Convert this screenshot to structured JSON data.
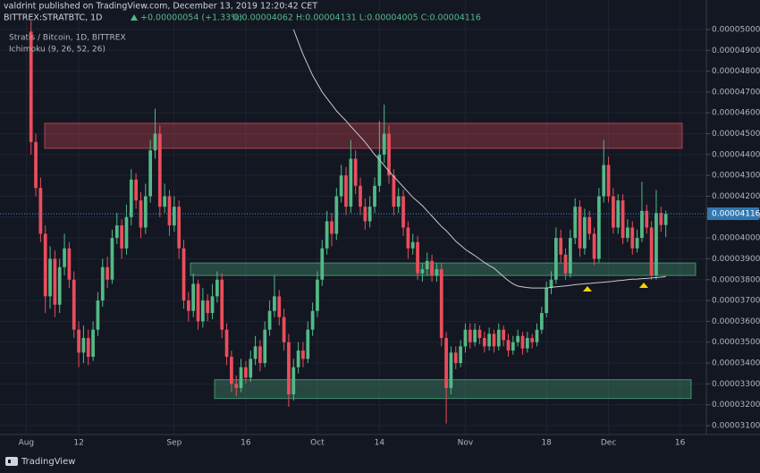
{
  "header": {
    "byline": "valdrint published on TradingView.com, December 13, 2019 12:20:42 CET",
    "symbol": "BITTREX:STRATBTC, 1D",
    "change": "+0.00000054 (+1.33%)",
    "ohlc": "O:0.00004062 H:0.00004131 L:0.00004005 C:0.00004116"
  },
  "footer": {
    "brand": "TradingView"
  },
  "chart_data": {
    "type": "candlestick",
    "legend_title": "Stratis / Bitcoin, 1D, BITTREX",
    "up_color": "#53b987",
    "down_color": "#eb4d5c",
    "grid": true,
    "ylim": [
      3.057e-05,
      5.047e-05
    ],
    "yticks": [
      {
        "value": 3.1e-05,
        "label": "0.00003100"
      },
      {
        "value": 3.2e-05,
        "label": "0.00003200"
      },
      {
        "value": 3.3e-05,
        "label": "0.00003300"
      },
      {
        "value": 3.4e-05,
        "label": "0.00003400"
      },
      {
        "value": 3.5e-05,
        "label": "0.00003500"
      },
      {
        "value": 3.6e-05,
        "label": "0.00003600"
      },
      {
        "value": 3.7e-05,
        "label": "0.00003700"
      },
      {
        "value": 3.8e-05,
        "label": "0.00003800"
      },
      {
        "value": 3.9e-05,
        "label": "0.00003900"
      },
      {
        "value": 4e-05,
        "label": "0.00004000"
      },
      {
        "value": 4.1e-05,
        "label": "0.00004100"
      },
      {
        "value": 4.2e-05,
        "label": "0.00004200"
      },
      {
        "value": 4.3e-05,
        "label": "0.00004300"
      },
      {
        "value": 4.4e-05,
        "label": "0.00004400"
      },
      {
        "value": 4.5e-05,
        "label": "0.00004500"
      },
      {
        "value": 4.6e-05,
        "label": "0.00004600"
      },
      {
        "value": 4.7e-05,
        "label": "0.00004700"
      },
      {
        "value": 4.8e-05,
        "label": "0.00004800"
      },
      {
        "value": 4.9e-05,
        "label": "0.00004900"
      },
      {
        "value": 5e-05,
        "label": "0.00005000"
      }
    ],
    "categories": [
      null,
      null,
      null,
      null,
      null,
      "Aug",
      null,
      null,
      null,
      null,
      null,
      null,
      null,
      null,
      null,
      null,
      "12",
      null,
      null,
      null,
      null,
      null,
      null,
      null,
      null,
      null,
      null,
      null,
      null,
      null,
      null,
      null,
      null,
      null,
      null,
      null,
      "Sep",
      null,
      null,
      null,
      null,
      null,
      null,
      null,
      null,
      null,
      null,
      null,
      null,
      null,
      null,
      "16",
      null,
      null,
      null,
      null,
      null,
      null,
      null,
      null,
      null,
      null,
      null,
      null,
      null,
      null,
      "Oct",
      null,
      null,
      null,
      null,
      null,
      null,
      null,
      null,
      null,
      null,
      null,
      null,
      "14",
      null,
      null,
      null,
      null,
      null,
      null,
      null,
      null,
      null,
      null,
      null,
      null,
      null,
      null,
      null,
      null,
      null,
      "Nov",
      null,
      null,
      null,
      null,
      null,
      null,
      null,
      null,
      null,
      null,
      null,
      null,
      null,
      null,
      null,
      null,
      "18",
      null,
      null,
      null,
      null,
      null,
      null,
      null,
      null,
      null,
      null,
      null,
      null,
      "Dec",
      null,
      null,
      null,
      null,
      null,
      null,
      null,
      null,
      null,
      null,
      null,
      null,
      null,
      null,
      "16",
      null,
      null,
      null,
      null,
      null
    ],
    "open": [
      null,
      null,
      null,
      null,
      null,
      null,
      4.99e-05,
      4.46e-05,
      4.24e-05,
      4.02e-05,
      3.72e-05,
      3.9e-05,
      3.68e-05,
      3.86e-05,
      3.95e-05,
      3.8e-05,
      3.56e-05,
      3.45e-05,
      3.52e-05,
      3.43e-05,
      3.56e-05,
      3.7e-05,
      3.86e-05,
      3.8e-05,
      4e-05,
      4.06e-05,
      3.95e-05,
      4.1e-05,
      4.28e-05,
      4.18e-05,
      4.05e-05,
      4.2e-05,
      4.42e-05,
      4.5e-05,
      4.15e-05,
      4.2e-05,
      4.06e-05,
      4.15e-05,
      3.95e-05,
      3.7e-05,
      3.65e-05,
      3.78e-05,
      3.6e-05,
      3.7e-05,
      3.64e-05,
      3.72e-05,
      3.8e-05,
      3.56e-05,
      3.43e-05,
      3.3e-05,
      3.28e-05,
      3.38e-05,
      3.33e-05,
      3.42e-05,
      3.48e-05,
      3.4e-05,
      3.56e-05,
      3.65e-05,
      3.72e-05,
      3.62e-05,
      3.5e-05,
      3.25e-05,
      3.38e-05,
      3.46e-05,
      3.42e-05,
      3.56e-05,
      3.65e-05,
      3.8e-05,
      3.95e-05,
      4.08e-05,
      4.02e-05,
      4.2e-05,
      4.3e-05,
      4.15e-05,
      4.38e-05,
      4.25e-05,
      4.15e-05,
      4.08e-05,
      4.15e-05,
      4.25e-05,
      4.4e-05,
      4.5e-05,
      4.3e-05,
      4.15e-05,
      4.2e-05,
      4.05e-05,
      3.95e-05,
      3.98e-05,
      3.83e-05,
      3.85e-05,
      3.89e-05,
      3.82e-05,
      3.85e-05,
      3.52e-05,
      3.28e-05,
      3.45e-05,
      3.4e-05,
      3.48e-05,
      3.56e-05,
      3.5e-05,
      3.56e-05,
      3.52e-05,
      3.48e-05,
      3.54e-05,
      3.48e-05,
      3.56e-05,
      3.51e-05,
      3.46e-05,
      3.5e-05,
      3.53e-05,
      3.47e-05,
      3.52e-05,
      3.5e-05,
      3.56e-05,
      3.64e-05,
      3.76e-05,
      3.8e-05,
      4e-05,
      3.92e-05,
      3.83e-05,
      4e-05,
      4.15e-05,
      3.95e-05,
      4.1e-05,
      4.02e-05,
      3.9e-05,
      4.2e-05,
      4.35e-05,
      4.2e-05,
      4.05e-05,
      4.18e-05,
      4e-05,
      4.05e-05,
      3.95e-05,
      4e-05,
      4.13e-05,
      4.05e-05,
      3.82e-05,
      4.12e-05,
      4.062e-05,
      null,
      null,
      null,
      null,
      null,
      null,
      null,
      null
    ],
    "high": [
      null,
      null,
      null,
      null,
      null,
      null,
      5.04e-05,
      4.5e-05,
      4.29e-05,
      4.06e-05,
      3.96e-05,
      3.94e-05,
      3.9e-05,
      4.02e-05,
      3.98e-05,
      3.84e-05,
      3.6e-05,
      3.58e-05,
      3.56e-05,
      3.6e-05,
      3.74e-05,
      3.9e-05,
      3.91e-05,
      4.04e-05,
      4.12e-05,
      4.09e-05,
      4.16e-05,
      4.33e-05,
      4.31e-05,
      4.22e-05,
      4.26e-05,
      4.47e-05,
      4.62e-05,
      4.54e-05,
      4.26e-05,
      4.23e-05,
      4.2e-05,
      4.18e-05,
      3.99e-05,
      3.74e-05,
      3.83e-05,
      3.8e-05,
      3.76e-05,
      3.73e-05,
      3.78e-05,
      3.84e-05,
      3.83e-05,
      3.59e-05,
      3.46e-05,
      3.34e-05,
      3.42e-05,
      3.41e-05,
      3.46e-05,
      3.53e-05,
      3.51e-05,
      3.6e-05,
      3.7e-05,
      3.82e-05,
      3.75e-05,
      3.66e-05,
      3.54e-05,
      3.42e-05,
      3.5e-05,
      3.5e-05,
      3.6e-05,
      3.69e-05,
      3.84e-05,
      3.99e-05,
      4.13e-05,
      4.12e-05,
      4.24e-05,
      4.35e-05,
      4.34e-05,
      4.47e-05,
      4.42e-05,
      4.29e-05,
      4.19e-05,
      4.2e-05,
      4.29e-05,
      4.56e-05,
      4.64e-05,
      4.54e-05,
      4.33e-05,
      4.24e-05,
      4.23e-05,
      4.08e-05,
      4.02e-05,
      4.01e-05,
      3.88e-05,
      3.93e-05,
      3.92e-05,
      3.88e-05,
      3.88e-05,
      3.55e-05,
      3.48e-05,
      3.48e-05,
      3.51e-05,
      3.59e-05,
      3.59e-05,
      3.59e-05,
      3.58e-05,
      3.55e-05,
      3.57e-05,
      3.56e-05,
      3.59e-05,
      3.58e-05,
      3.54e-05,
      3.53e-05,
      3.56e-05,
      3.55e-05,
      3.55e-05,
      3.54e-05,
      3.59e-05,
      3.67e-05,
      3.79e-05,
      3.84e-05,
      4.05e-05,
      4.04e-05,
      3.95e-05,
      4.04e-05,
      4.19e-05,
      4.18e-05,
      4.14e-05,
      4.13e-05,
      4.05e-05,
      4.24e-05,
      4.47e-05,
      4.39e-05,
      4.24e-05,
      4.21e-05,
      4.21e-05,
      4.09e-05,
      4.08e-05,
      4.04e-05,
      4.27e-05,
      4.16e-05,
      4.08e-05,
      4.23e-05,
      4.15e-05,
      4.131e-05,
      null,
      null,
      null,
      null,
      null,
      null,
      null,
      null
    ],
    "low": [
      null,
      null,
      null,
      null,
      null,
      null,
      4.4e-05,
      4.2e-05,
      3.98e-05,
      3.64e-05,
      3.66e-05,
      3.62e-05,
      3.64e-05,
      3.82e-05,
      3.76e-05,
      3.52e-05,
      3.38e-05,
      3.4e-05,
      3.39e-05,
      3.41e-05,
      3.53e-05,
      3.67e-05,
      3.76e-05,
      3.78e-05,
      3.97e-05,
      3.9e-05,
      3.92e-05,
      4.06e-05,
      4.14e-05,
      4e-05,
      4.02e-05,
      4.17e-05,
      4.38e-05,
      4.1e-05,
      4.12e-05,
      4.01e-05,
      4.03e-05,
      3.9e-05,
      3.66e-05,
      3.6e-05,
      3.62e-05,
      3.56e-05,
      3.57e-05,
      3.6e-05,
      3.61e-05,
      3.69e-05,
      3.52e-05,
      3.39e-05,
      3.26e-05,
      3.24e-05,
      3.26e-05,
      3.3e-05,
      3.31e-05,
      3.39e-05,
      3.36e-05,
      3.38e-05,
      3.53e-05,
      3.62e-05,
      3.58e-05,
      3.46e-05,
      3.19e-05,
      3.22e-05,
      3.35e-05,
      3.38e-05,
      3.4e-05,
      3.53e-05,
      3.62e-05,
      3.77e-05,
      3.92e-05,
      3.96e-05,
      3.99e-05,
      4.17e-05,
      4.11e-05,
      4.12e-05,
      4.21e-05,
      4.11e-05,
      4.04e-05,
      4.05e-05,
      4.12e-05,
      4.22e-05,
      4.36e-05,
      4.26e-05,
      4.11e-05,
      4.12e-05,
      4.01e-05,
      3.9e-05,
      3.92e-05,
      3.8e-05,
      3.79e-05,
      3.82e-05,
      3.79e-05,
      3.79e-05,
      3.48e-05,
      3.11e-05,
      3.25e-05,
      3.37e-05,
      3.38e-05,
      3.45e-05,
      3.47e-05,
      3.48e-05,
      3.49e-05,
      3.45e-05,
      3.46e-05,
      3.45e-05,
      3.46e-05,
      3.48e-05,
      3.43e-05,
      3.44e-05,
      3.48e-05,
      3.44e-05,
      3.45e-05,
      3.47e-05,
      3.48e-05,
      3.54e-05,
      3.62e-05,
      3.73e-05,
      3.78e-05,
      3.88e-05,
      3.8e-05,
      3.81e-05,
      3.97e-05,
      3.91e-05,
      3.92e-05,
      3.99e-05,
      3.87e-05,
      3.88e-05,
      4.17e-05,
      4.17e-05,
      4.02e-05,
      4.02e-05,
      3.97e-05,
      3.98e-05,
      3.92e-05,
      3.93e-05,
      3.98e-05,
      4.02e-05,
      3.8e-05,
      3.8e-05,
      4.03e-05,
      4.005e-05,
      null,
      null,
      null,
      null,
      null,
      null,
      null,
      null
    ],
    "close": [
      null,
      null,
      null,
      null,
      null,
      null,
      4.46e-05,
      4.24e-05,
      4.02e-05,
      3.72e-05,
      3.9e-05,
      3.68e-05,
      3.86e-05,
      3.95e-05,
      3.8e-05,
      3.56e-05,
      3.45e-05,
      3.52e-05,
      3.43e-05,
      3.56e-05,
      3.7e-05,
      3.86e-05,
      3.8e-05,
      4e-05,
      4.06e-05,
      3.95e-05,
      4.1e-05,
      4.28e-05,
      4.18e-05,
      4.05e-05,
      4.2e-05,
      4.42e-05,
      4.5e-05,
      4.15e-05,
      4.2e-05,
      4.06e-05,
      4.15e-05,
      3.95e-05,
      3.7e-05,
      3.65e-05,
      3.78e-05,
      3.6e-05,
      3.7e-05,
      3.64e-05,
      3.72e-05,
      3.8e-05,
      3.56e-05,
      3.43e-05,
      3.3e-05,
      3.28e-05,
      3.38e-05,
      3.33e-05,
      3.42e-05,
      3.48e-05,
      3.4e-05,
      3.56e-05,
      3.65e-05,
      3.72e-05,
      3.62e-05,
      3.5e-05,
      3.25e-05,
      3.38e-05,
      3.46e-05,
      3.42e-05,
      3.56e-05,
      3.65e-05,
      3.8e-05,
      3.95e-05,
      4.08e-05,
      4.02e-05,
      4.2e-05,
      4.3e-05,
      4.15e-05,
      4.38e-05,
      4.25e-05,
      4.15e-05,
      4.08e-05,
      4.15e-05,
      4.25e-05,
      4.4e-05,
      4.5e-05,
      4.3e-05,
      4.15e-05,
      4.2e-05,
      4.05e-05,
      3.95e-05,
      3.98e-05,
      3.83e-05,
      3.85e-05,
      3.89e-05,
      3.82e-05,
      3.85e-05,
      3.52e-05,
      3.28e-05,
      3.45e-05,
      3.4e-05,
      3.48e-05,
      3.56e-05,
      3.5e-05,
      3.56e-05,
      3.52e-05,
      3.48e-05,
      3.54e-05,
      3.48e-05,
      3.56e-05,
      3.51e-05,
      3.46e-05,
      3.5e-05,
      3.53e-05,
      3.47e-05,
      3.52e-05,
      3.5e-05,
      3.56e-05,
      3.64e-05,
      3.76e-05,
      3.8e-05,
      4e-05,
      3.92e-05,
      3.83e-05,
      4e-05,
      4.15e-05,
      3.95e-05,
      4.1e-05,
      4.02e-05,
      3.9e-05,
      4.2e-05,
      4.35e-05,
      4.2e-05,
      4.05e-05,
      4.18e-05,
      4e-05,
      4.05e-05,
      3.95e-05,
      4e-05,
      4.13e-05,
      4.05e-05,
      3.82e-05,
      4.12e-05,
      4.062e-05,
      4.116e-05,
      null,
      null,
      null,
      null,
      null,
      null,
      null,
      null
    ],
    "lines": [
      {
        "name": "Ichimoku (9, 26, 52, 26)",
        "color": "#c9c9c9",
        "values": [
          null,
          null,
          null,
          null,
          null,
          null,
          null,
          null,
          null,
          null,
          null,
          null,
          null,
          null,
          null,
          null,
          null,
          null,
          null,
          null,
          null,
          null,
          null,
          null,
          null,
          null,
          null,
          null,
          null,
          null,
          null,
          null,
          null,
          null,
          null,
          null,
          null,
          null,
          null,
          null,
          null,
          null,
          null,
          null,
          null,
          null,
          null,
          null,
          null,
          null,
          null,
          null,
          null,
          null,
          null,
          null,
          null,
          null,
          null,
          null,
          null,
          5e-05,
          4.94e-05,
          4.88e-05,
          4.83e-05,
          4.78e-05,
          4.74e-05,
          4.7e-05,
          4.67e-05,
          4.64e-05,
          4.61e-05,
          4.585e-05,
          4.562e-05,
          4.535e-05,
          4.51e-05,
          4.485e-05,
          4.46e-05,
          4.43e-05,
          4.4e-05,
          4.375e-05,
          4.348e-05,
          4.32e-05,
          4.295e-05,
          4.27e-05,
          4.245e-05,
          4.22e-05,
          4.195e-05,
          4.175e-05,
          4.155e-05,
          4.13e-05,
          4.105e-05,
          4.08e-05,
          4.055e-05,
          4.035e-05,
          4.01e-05,
          3.984e-05,
          3.965e-05,
          3.945e-05,
          3.93e-05,
          3.915e-05,
          3.898e-05,
          3.882e-05,
          3.868e-05,
          3.855e-05,
          3.835e-05,
          3.815e-05,
          3.795e-05,
          3.78e-05,
          3.769e-05,
          3.765e-05,
          3.762e-05,
          3.76e-05,
          3.76e-05,
          3.76e-05,
          3.76e-05,
          3.763e-05,
          3.766e-05,
          3.768e-05,
          3.77e-05,
          3.773e-05,
          3.776e-05,
          3.778e-05,
          3.78e-05,
          3.782e-05,
          3.784e-05,
          3.786e-05,
          3.788e-05,
          3.79e-05,
          3.792e-05,
          3.795e-05,
          3.797e-05,
          3.8e-05,
          3.802e-05,
          3.803e-05,
          3.805e-05,
          3.806e-05,
          3.808e-05,
          3.81e-05,
          3.812e-05,
          3.815e-05,
          null,
          null,
          null,
          null,
          null,
          null,
          null,
          null
        ]
      }
    ],
    "zones": [
      {
        "ylim": [
          4.43e-05,
          4.55e-05
        ],
        "color": "#eb4d5c"
      },
      {
        "ylim": [
          3.82e-05,
          3.88e-05
        ],
        "color": "#53b987"
      },
      {
        "ylim": [
          3.23e-05,
          3.32e-05
        ],
        "color": "#53b987"
      }
    ]
  }
}
